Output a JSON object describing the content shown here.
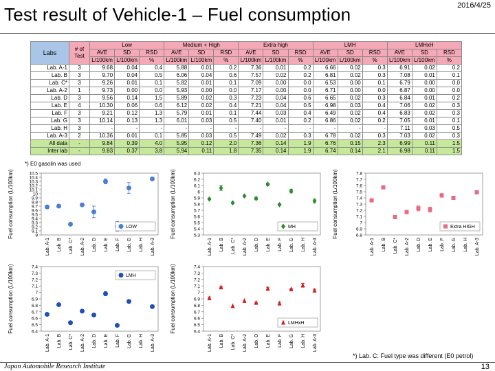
{
  "header": {
    "title": "Test result of Vehicle-1 – Fuel consumption",
    "date": "2016/4/25"
  },
  "footer": {
    "institute": "Japan Automobile Research Institute",
    "page": "13",
    "note": "*) Lab. C: Fuel type was different (E0 petrol)"
  },
  "table": {
    "groups": [
      "Low",
      "Medium + High",
      "Extra high",
      "LMH",
      "LMHxH"
    ],
    "labs_header": "Labs",
    "ntest_header_1": "# of",
    "ntest_header_2": "Test",
    "sub_headers": [
      "AVE",
      "SD",
      "RSD"
    ],
    "unit_headers": [
      "L/100km",
      "L/100km",
      "%"
    ],
    "rows": [
      [
        "Lab. A-1",
        "3",
        "9.68",
        "0.04",
        "0.4",
        "5.88",
        "0.01",
        "0.2",
        "7.36",
        "0.01",
        "0.2",
        "6.66",
        "0.02",
        "0.3",
        "6.91",
        "0.02",
        "0.2"
      ],
      [
        "Lab. B",
        "3",
        "9.70",
        "0.04",
        "0.5",
        "6.06",
        "0.04",
        "0.6",
        "7.57",
        "0.02",
        "0.2",
        "6.81",
        "0.02",
        "0.3",
        "7.08",
        "0.01",
        "0.1"
      ],
      [
        "Lab. C*",
        "3",
        "9.26",
        "0.01",
        "0.1",
        "5.82",
        "0.01",
        "0.1",
        "7.09",
        "0.00",
        "0.0",
        "6.53",
        "0.00",
        "0.1",
        "6.79",
        "0.00",
        "0.0"
      ],
      [
        "Lab. A-2",
        "1",
        "9.73",
        "0.00",
        "0.0",
        "5.93",
        "0.00",
        "0.0",
        "7.17",
        "0.00",
        "0.0",
        "6.71",
        "0.00",
        "0.0",
        "6.87",
        "0.00",
        "0.0"
      ],
      [
        "Lab. D",
        "3",
        "9.56",
        "0.14",
        "1.5",
        "5.89",
        "0.02",
        "0.3",
        "7.23",
        "0.04",
        "0.6",
        "6.65",
        "0.02",
        "0.3",
        "6.84",
        "0.01",
        "0.2"
      ],
      [
        "Lab. E",
        "4",
        "10.30",
        "0.06",
        "0.6",
        "6.12",
        "0.02",
        "0.4",
        "7.21",
        "0.04",
        "0.5",
        "6.98",
        "0.03",
        "0.4",
        "7.06",
        "0.02",
        "0.3"
      ],
      [
        "Lab. F",
        "3",
        "9.21",
        "0.12",
        "1.3",
        "5.79",
        "0.01",
        "0.1",
        "7.44",
        "0.03",
        "0.4",
        "6.49",
        "0.02",
        "0.4",
        "6.83",
        "0.02",
        "0.3"
      ],
      [
        "Lab. G",
        "3",
        "10.14",
        "0.13",
        "1.3",
        "6.01",
        "0.03",
        "0.5",
        "7.40",
        "0.01",
        "0.2",
        "6.86",
        "0.02",
        "0.2",
        "7.05",
        "0.01",
        "0.1"
      ],
      [
        "Lab. H",
        "3",
        "-",
        "-",
        "-",
        "-",
        "-",
        "-",
        "-",
        "-",
        "-",
        "-",
        "-",
        "-",
        "7.11",
        "0.03",
        "0.5"
      ],
      [
        "Lab. A-3",
        "2",
        "10.36",
        "0.01",
        "0.1",
        "5.85",
        "0.03",
        "0.5",
        "7.49",
        "0.02",
        "0.3",
        "6.78",
        "0.02",
        "0.3",
        "7.03",
        "0.02",
        "0.3"
      ]
    ],
    "all_row": [
      "All data",
      "-",
      "9.84",
      "0.39",
      "4.0",
      "5.95",
      "0.12",
      "2.0",
      "7.36",
      "0.14",
      "1.9",
      "6.76",
      "0.15",
      "2.3",
      "6.99",
      "0.11",
      "1.5"
    ],
    "inter_row": [
      "Inter lab",
      "-",
      "9.83",
      "0.37",
      "3.8",
      "5.94",
      "0.11",
      "1.8",
      "7.35",
      "0.14",
      "1.9",
      "6.74",
      "0.14",
      "2.1",
      "6.98",
      "0.11",
      "1.5"
    ],
    "footnote": "*) E0 gasolin was used"
  },
  "chart_data": [
    {
      "type": "scatter",
      "legend": "LOW",
      "legend_position": "bottom-right",
      "ylabel": "Fuel consumption (L/100km)",
      "ylim": [
        9.0,
        10.5
      ],
      "yticks": [
        9.0,
        9.1,
        9.2,
        9.3,
        9.4,
        9.5,
        9.6,
        9.7,
        9.8,
        9.9,
        10.0,
        10.1,
        10.2,
        10.3,
        10.4,
        10.5
      ],
      "categories": [
        "Lab. A-1",
        "Lab. B",
        "Lab. C*",
        "Lab. A-2",
        "Lab. D",
        "Lab. E",
        "Lab. F",
        "Lab. G",
        "Lab. H",
        "Lab. A-3"
      ],
      "values": [
        9.68,
        9.7,
        9.26,
        9.73,
        9.56,
        10.3,
        9.21,
        10.14,
        null,
        10.36
      ],
      "sd": [
        0.04,
        0.04,
        0.01,
        0.0,
        0.14,
        0.06,
        0.12,
        0.13,
        null,
        0.01
      ],
      "marker": "circle",
      "color": "#4a7fd4"
    },
    {
      "type": "scatter",
      "legend": "MH",
      "legend_position": "bottom-right",
      "ylabel": "Fuel consumption (L/100km)",
      "ylim": [
        5.3,
        6.3
      ],
      "yticks": [
        5.3,
        5.4,
        5.5,
        5.6,
        5.7,
        5.8,
        5.9,
        6.0,
        6.1,
        6.2,
        6.3
      ],
      "categories": [
        "Lab. A-1",
        "Lab. B",
        "Lab. C*",
        "Lab. A-2",
        "Lab. D",
        "Lab. E",
        "Lab. F",
        "Lab. G",
        "Lab. H",
        "Lab. A-3"
      ],
      "values": [
        5.88,
        6.06,
        5.82,
        5.93,
        5.89,
        6.12,
        5.79,
        6.01,
        null,
        5.85
      ],
      "sd": [
        0.01,
        0.04,
        0.01,
        0.0,
        0.02,
        0.02,
        0.01,
        0.03,
        null,
        0.03
      ],
      "marker": "diamond",
      "color": "#2e8b2e"
    },
    {
      "type": "scatter",
      "legend": "Extra HIGH",
      "legend_position": "bottom-right",
      "ylabel": "Fuel consumption (L/100km)",
      "ylim": [
        6.8,
        7.8
      ],
      "yticks": [
        6.8,
        6.9,
        7.0,
        7.1,
        7.2,
        7.3,
        7.4,
        7.5,
        7.6,
        7.7,
        7.8
      ],
      "categories": [
        "Lab. A-1",
        "Lab. B",
        "Lab. C*",
        "Lab. A-2",
        "Lab. D",
        "Lab. E",
        "Lab. F",
        "Lab. G",
        "Lab. H",
        "Lab. A-3"
      ],
      "values": [
        7.36,
        7.57,
        7.09,
        7.17,
        7.23,
        7.21,
        7.44,
        7.4,
        null,
        7.49
      ],
      "sd": [
        0.01,
        0.02,
        0.0,
        0.0,
        0.04,
        0.04,
        0.03,
        0.01,
        null,
        0.02
      ],
      "marker": "square",
      "color": "#e86a84"
    },
    {
      "type": "scatter",
      "legend": "LMH",
      "legend_position": "top-right",
      "ylabel": "Fuel consumption (L/100km)",
      "ylim": [
        6.4,
        7.4
      ],
      "yticks": [
        6.4,
        6.5,
        6.6,
        6.7,
        6.8,
        6.9,
        7.0,
        7.1,
        7.2,
        7.3,
        7.4
      ],
      "categories": [
        "Lab. A-1",
        "Lab. B",
        "Lab. C*",
        "Lab. A-2",
        "Lab. D",
        "Lab. E",
        "Lab. F",
        "Lab. G",
        "Lab. H",
        "Lab. A-3"
      ],
      "values": [
        6.66,
        6.81,
        6.53,
        6.71,
        6.65,
        6.98,
        6.49,
        6.86,
        null,
        6.78
      ],
      "sd": [
        0.02,
        0.02,
        0.0,
        0.0,
        0.02,
        0.03,
        0.02,
        0.02,
        null,
        0.02
      ],
      "marker": "circle",
      "color": "#1f4fb8"
    },
    {
      "type": "scatter",
      "legend": "LMHxH",
      "legend_position": "bottom-right",
      "ylabel": "Fuel consumption (L/100km)",
      "ylim": [
        6.4,
        7.4
      ],
      "yticks": [
        6.4,
        6.5,
        6.6,
        6.7,
        6.8,
        6.9,
        7.0,
        7.1,
        7.2,
        7.3,
        7.4
      ],
      "categories": [
        "Lab. A-1",
        "Lab. B",
        "Lab. C*",
        "Lab. A-2",
        "Lab. D",
        "Lab. E",
        "Lab. F",
        "Lab. G",
        "Lab. H",
        "Lab. A-3"
      ],
      "values": [
        6.91,
        7.08,
        6.79,
        6.87,
        6.84,
        7.06,
        6.83,
        7.05,
        7.11,
        7.03
      ],
      "sd": [
        0.02,
        0.01,
        0.0,
        0.0,
        0.01,
        0.02,
        0.02,
        0.01,
        0.03,
        0.02
      ],
      "marker": "triangle",
      "color": "#d42020"
    }
  ]
}
